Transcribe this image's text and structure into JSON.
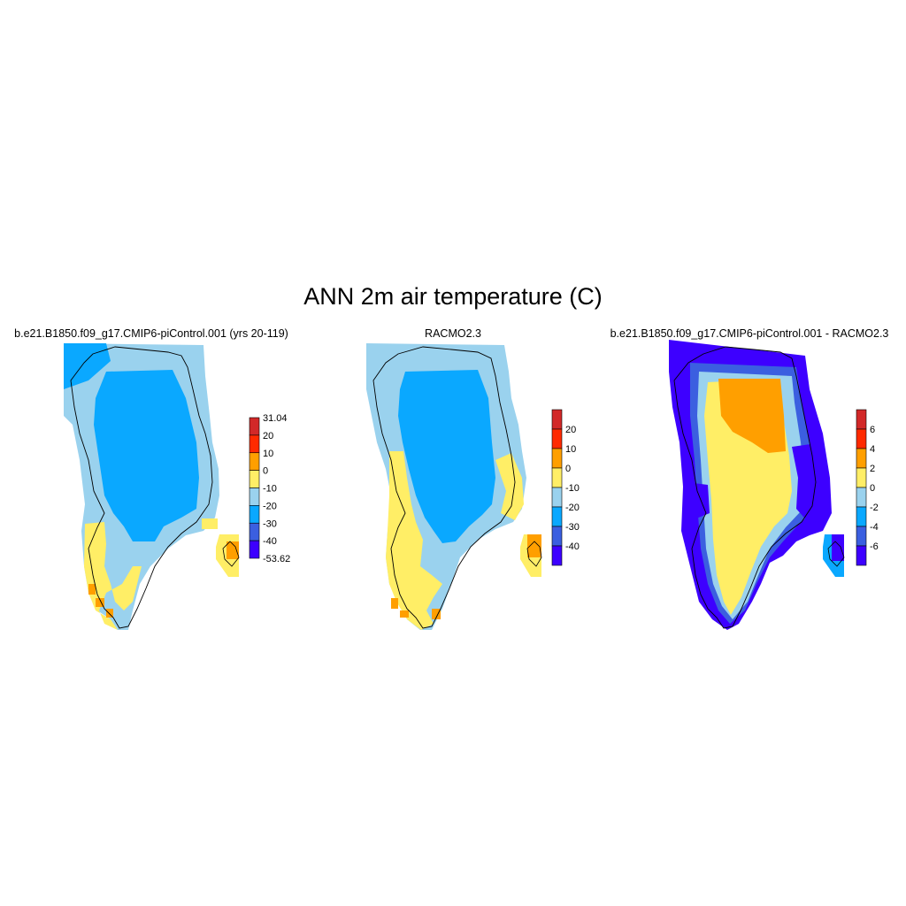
{
  "figure": {
    "title": "ANN 2m air temperature (C)"
  },
  "colors": {
    "abs_levels": [
      "#3d00ff",
      "#3b5fe0",
      "#0aa8ff",
      "#9ad2ee",
      "#ffee66",
      "#ff9f00",
      "#ff2a00",
      "#d22828"
    ],
    "diff_levels": [
      "#3d00ff",
      "#3b5fe0",
      "#0aa8ff",
      "#9ad2ee",
      "#ffee66",
      "#ff9f00",
      "#ff2a00",
      "#d22828"
    ],
    "coastline": "#000000"
  },
  "panels": [
    {
      "title": "b.e21.B1850.f09_g17.CMIP6-piControl.001 (yrs 20-119)",
      "colorbar_labels": [
        "31.04",
        "20",
        "10",
        "0",
        "-10",
        "-20",
        "-30",
        "-40",
        "-53.62"
      ]
    },
    {
      "title": "RACMO2.3",
      "colorbar_labels": [
        "20",
        "10",
        "0",
        "-10",
        "-20",
        "-30",
        "-40"
      ]
    },
    {
      "title": "b.e21.B1850.f09_g17.CMIP6-piControl.001 - RACMO2.3",
      "colorbar_labels": [
        "6",
        "4",
        "2",
        "0",
        "-2",
        "-4",
        "-6"
      ]
    }
  ]
}
